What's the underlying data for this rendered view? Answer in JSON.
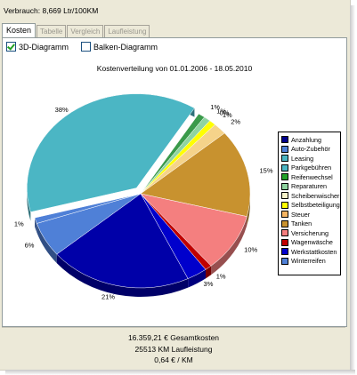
{
  "status": {
    "consumption": "Verbrauch: 8,669 Ltr/100KM"
  },
  "tabs": [
    {
      "label": "Kosten",
      "active": true
    },
    {
      "label": "Tabelle",
      "active": false
    },
    {
      "label": "Vergleich",
      "active": false
    },
    {
      "label": "Laufleistung",
      "active": false
    }
  ],
  "options": {
    "pie_label": "3D-Diagramm",
    "pie_checked": true,
    "bar_label": "Balken-Diagramm",
    "bar_checked": false
  },
  "chart_data": {
    "type": "pie",
    "title": "Kostenverteilung von 01.01.2006 - 18.05.2010",
    "slices": [
      {
        "name": "Anzahlung",
        "value": 0,
        "label": "",
        "color": "#00008b"
      },
      {
        "name": "Auto-Zubehör",
        "value": 6,
        "label": "6%",
        "color": "#4f80d7"
      },
      {
        "name": "Leasing",
        "value": 1,
        "label": "1%",
        "color": "#4f80d7"
      },
      {
        "name": "Parkgebühren",
        "value": 38,
        "label": "38%",
        "color": "#4bb6c4"
      },
      {
        "name": "Reifenwechsel",
        "value": 1,
        "label": "1%",
        "color": "#3a9a4a"
      },
      {
        "name": "Reparaturen",
        "value": 1,
        "label": "1%",
        "color": "#8fd4a0"
      },
      {
        "name": "Scheibenwischer",
        "value": 0,
        "label": "0%",
        "color": "#f3f3c0"
      },
      {
        "name": "Selbstbeteiligung",
        "value": 1,
        "label": "1%",
        "color": "#ffff00"
      },
      {
        "name": "Steuer",
        "value": 2,
        "label": "2%",
        "color": "#f5d38a"
      },
      {
        "name": "Tanken",
        "value": 15,
        "label": "15%",
        "color": "#c8922f"
      },
      {
        "name": "Versicherung",
        "value": 10,
        "label": "10%",
        "color": "#f47f7f"
      },
      {
        "name": "Wagenwäsche",
        "value": 1,
        "label": "1%",
        "color": "#c00000"
      },
      {
        "name": "Werkstattkosten",
        "value": 3,
        "label": "3%",
        "color": "#0000cc"
      },
      {
        "name": "Winterreifen",
        "value": 21,
        "label": "21%",
        "color": "#0000a8"
      }
    ],
    "legend": [
      {
        "label": "Anzahlung",
        "color": "#00008b"
      },
      {
        "label": "Auto-Zubehör",
        "color": "#4f80d7"
      },
      {
        "label": "Leasing",
        "color": "#4bb6c4"
      },
      {
        "label": "Parkgebühren",
        "color": "#4bb6c4"
      },
      {
        "label": "Reifenwechsel",
        "color": "#22a22a"
      },
      {
        "label": "Reparaturen",
        "color": "#8fd4a0"
      },
      {
        "label": "Scheibenwischer",
        "color": "#f6f2c8"
      },
      {
        "label": "Selbstbeteiligung",
        "color": "#ffff00"
      },
      {
        "label": "Steuer",
        "color": "#f5b563"
      },
      {
        "label": "Tanken",
        "color": "#c8922f"
      },
      {
        "label": "Versicherung",
        "color": "#f47f7f"
      },
      {
        "label": "Wagenwäsche",
        "color": "#c00000"
      },
      {
        "label": "Werkstattkosten",
        "color": "#0000cc"
      },
      {
        "label": "Winterreifen",
        "color": "#4f80d7"
      }
    ],
    "legend_position": "right"
  },
  "footer": {
    "total": "16.359,21 € Gesamtkosten",
    "mileage": "25513 KM Laufleistung",
    "per_km": "0,64 € / KM"
  }
}
